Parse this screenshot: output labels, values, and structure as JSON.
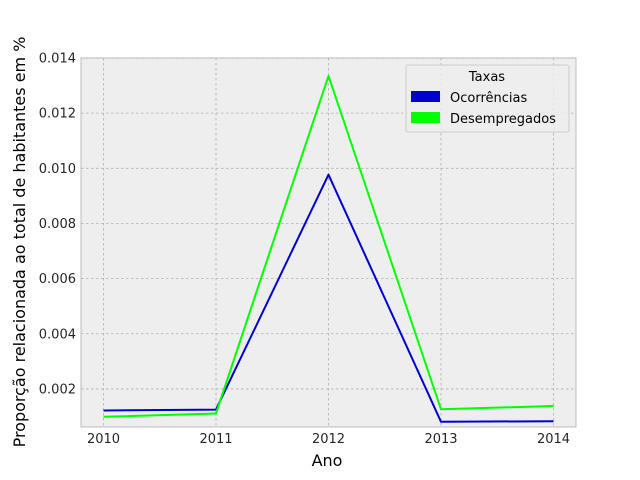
{
  "chart_data": {
    "type": "line",
    "title": "",
    "xlabel": "Ano",
    "ylabel": "Proporção relacionada ao total de habitantes em %",
    "x": [
      2010,
      2011,
      2012,
      2013,
      2014
    ],
    "xticks": [
      "2010",
      "2011",
      "2012",
      "2013",
      "2014"
    ],
    "xlim": [
      2009.8,
      2014.2
    ],
    "yticks": [
      "0.002",
      "0.004",
      "0.006",
      "0.008",
      "0.010",
      "0.012",
      "0.014"
    ],
    "ytick_values": [
      0.002,
      0.004,
      0.006,
      0.008,
      0.01,
      0.012,
      0.014
    ],
    "ylim": [
      0.00062,
      0.014
    ],
    "grid": true,
    "legend": {
      "title": "Taxas",
      "placement": "top-right"
    },
    "series": [
      {
        "name": "Ocorrências",
        "color": "#0000cc",
        "values": [
          0.00122,
          0.00125,
          0.00977,
          0.00081,
          0.00083
        ]
      },
      {
        "name": "Desempregados",
        "color": "#00ff00",
        "values": [
          0.00099,
          0.00111,
          0.01335,
          0.00126,
          0.00138
        ]
      }
    ]
  }
}
